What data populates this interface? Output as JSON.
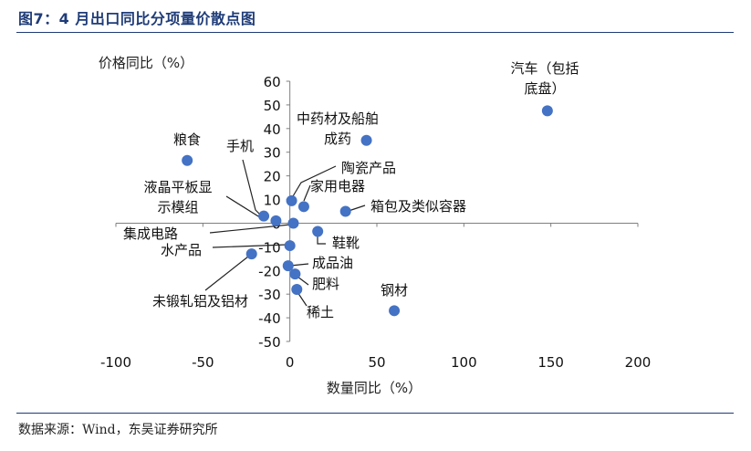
{
  "header": {
    "title": "图7：4 月出口同比分项量价散点图"
  },
  "footer": {
    "source": "数据来源：Wind，东吴证券研究所"
  },
  "colors": {
    "point": "#4472C4",
    "title": "#1f3c78",
    "axis": "#7f7f7f"
  },
  "chart_data": {
    "type": "scatter",
    "title": "",
    "xlabel": "数量同比（%）",
    "ylabel": "价格同比（%）",
    "xlim": [
      -100,
      200
    ],
    "ylim": [
      -50,
      60
    ],
    "xticks": [
      -100,
      -50,
      0,
      50,
      100,
      150,
      200
    ],
    "yticks": [
      -50,
      -40,
      -30,
      -20,
      -10,
      0,
      10,
      20,
      30,
      40,
      50,
      60
    ],
    "grid": false,
    "legend": "none",
    "points": [
      {
        "label": "汽车（包括\n底盘）",
        "x": 148,
        "y": 47.5
      },
      {
        "label": "中药材及船舶\n成药",
        "x": 44,
        "y": 35
      },
      {
        "label": "粮食",
        "x": -59,
        "y": 26.5
      },
      {
        "label": "手机",
        "x": -15,
        "y": 3
      },
      {
        "label": "液晶平板显\n示模组",
        "x": -8,
        "y": 1
      },
      {
        "label": "陶瓷产品",
        "x": 1,
        "y": 9.5
      },
      {
        "label": "家用电器",
        "x": 8,
        "y": 7
      },
      {
        "label": "箱包及类似容器",
        "x": 32,
        "y": 5
      },
      {
        "label": "集成电路",
        "x": 2,
        "y": 0
      },
      {
        "label": "鞋靴",
        "x": 16,
        "y": -3.5
      },
      {
        "label": "水产品",
        "x": 0,
        "y": -9.5
      },
      {
        "label": "未锻轧铝及铝材",
        "x": -22,
        "y": -13
      },
      {
        "label": "成品油",
        "x": -1,
        "y": -18
      },
      {
        "label": "肥料",
        "x": 3,
        "y": -21.5
      },
      {
        "label": "稀土",
        "x": 4,
        "y": -28
      },
      {
        "label": "钢材",
        "x": 60,
        "y": -37
      }
    ]
  }
}
